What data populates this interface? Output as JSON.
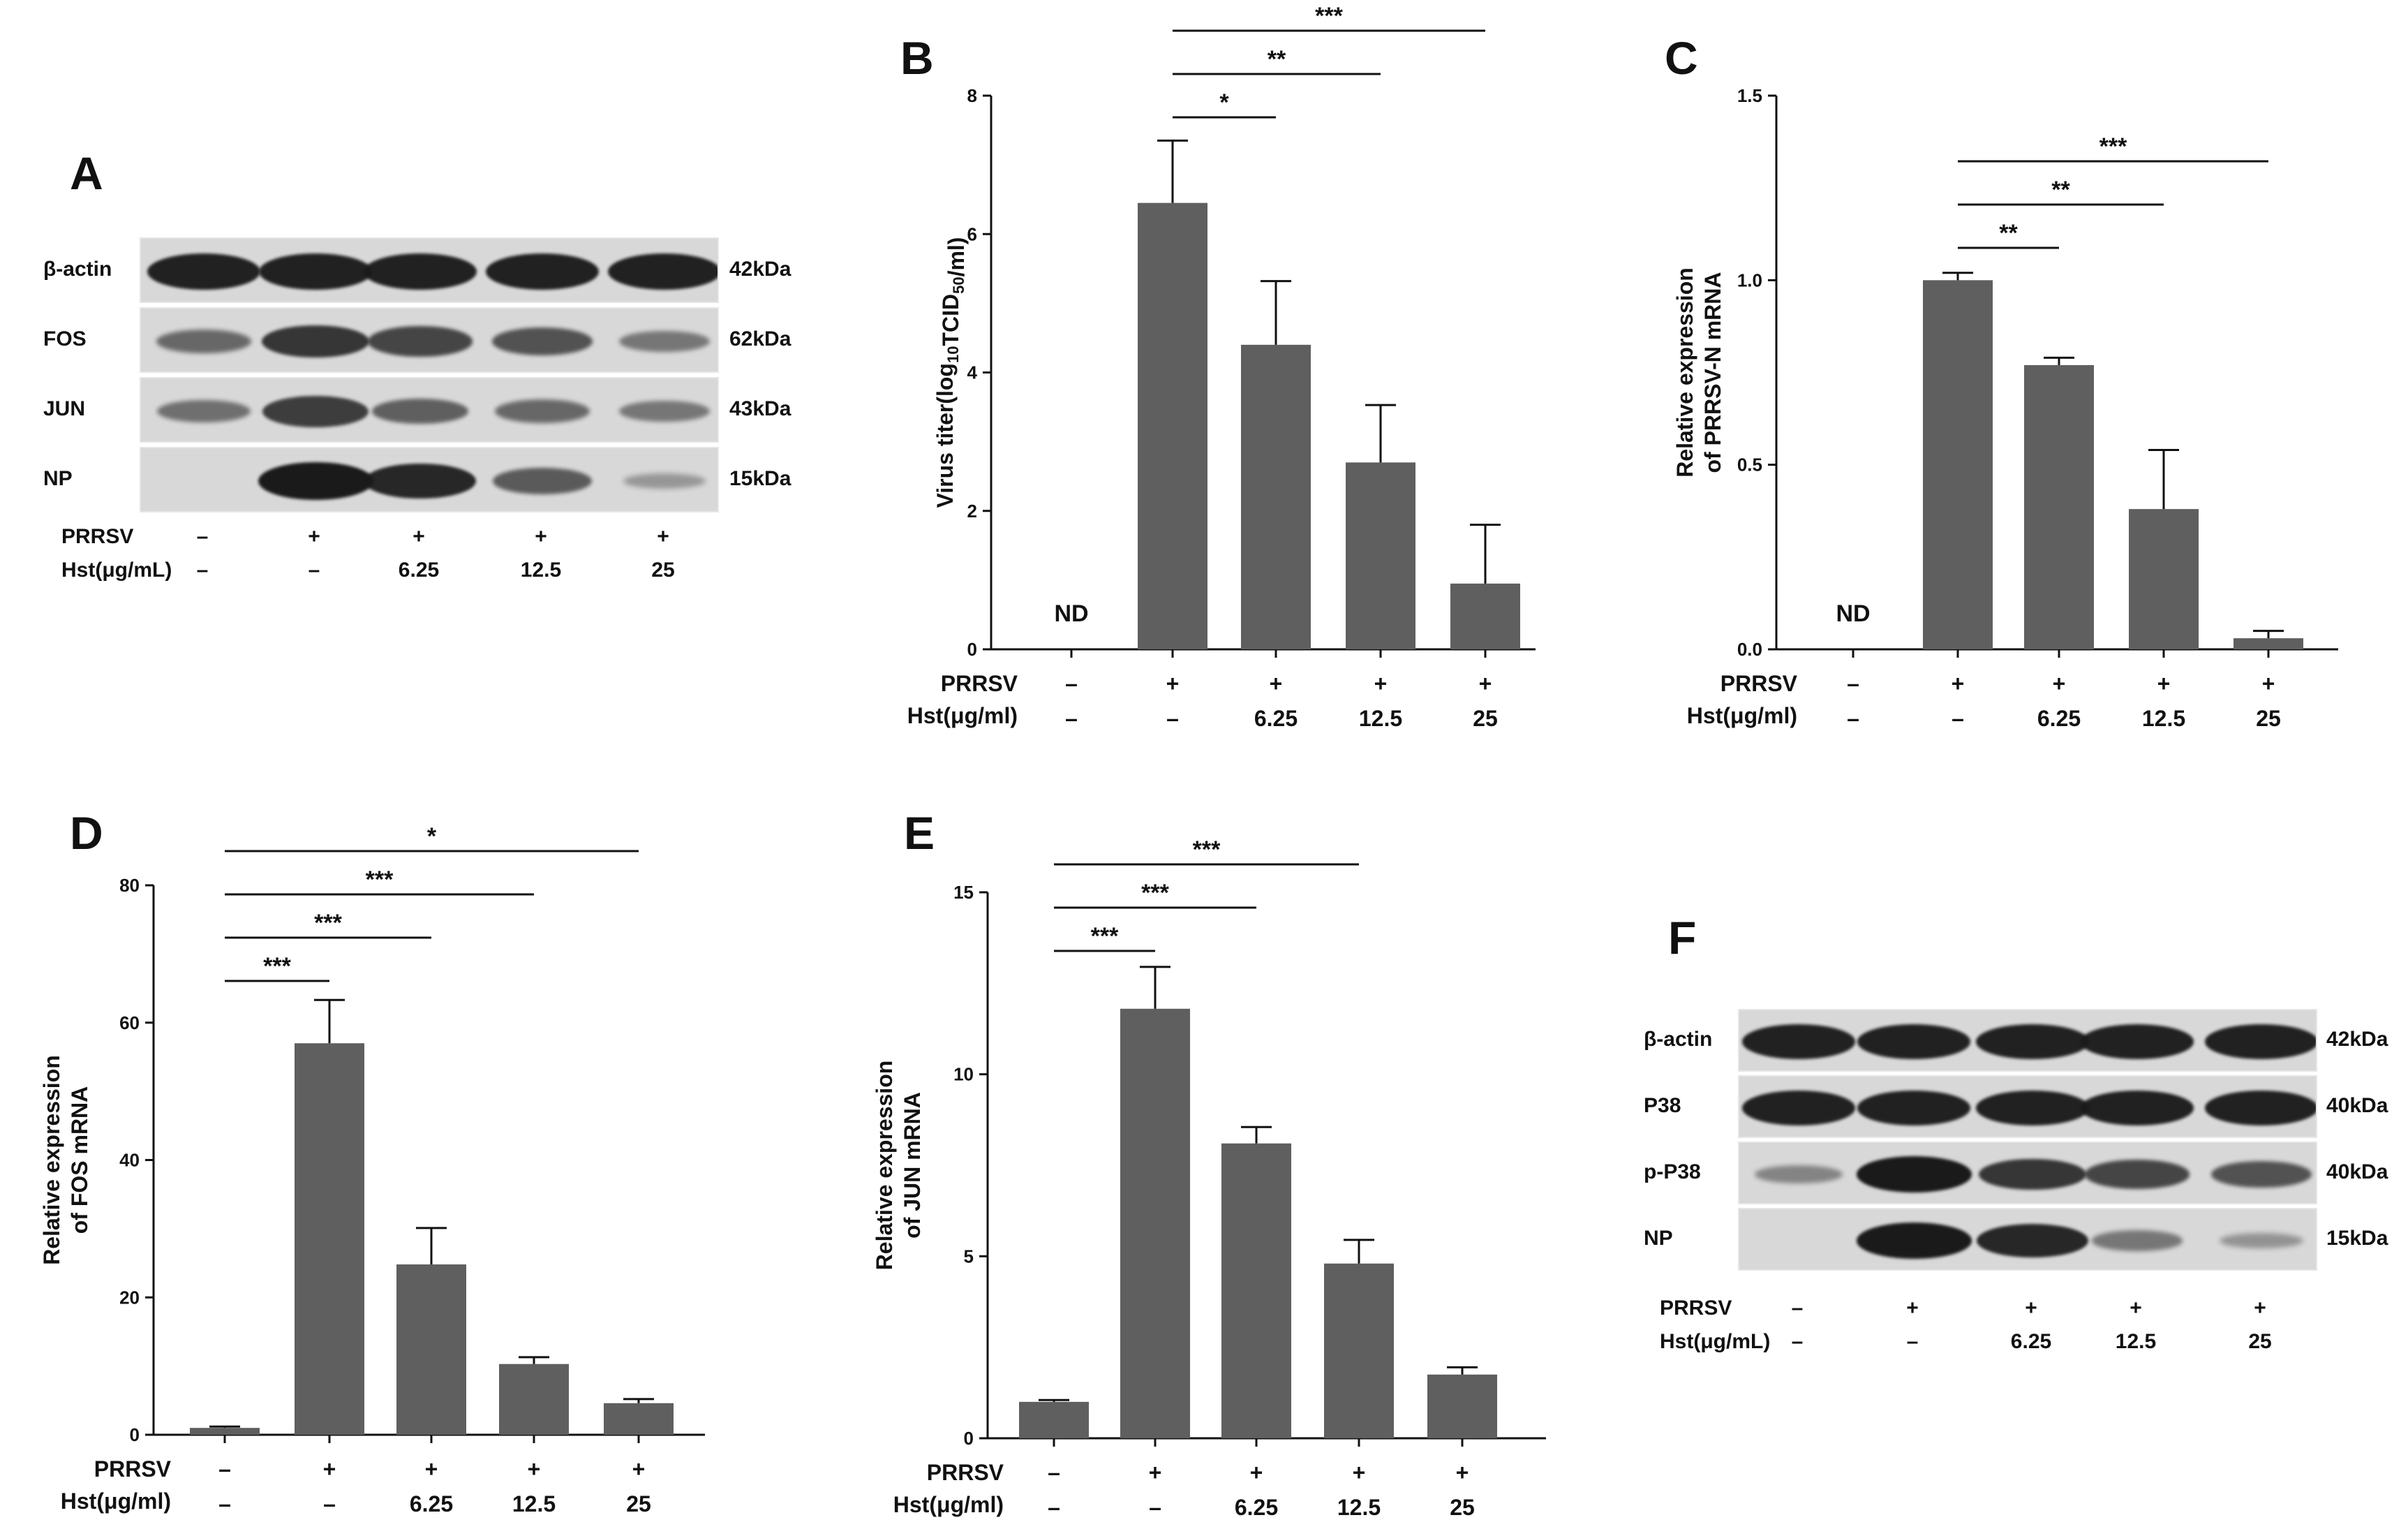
{
  "figure": {
    "panels": [
      "A",
      "B",
      "C",
      "D",
      "E",
      "F"
    ]
  },
  "conditions": {
    "row1_label": "PRRSV",
    "row2_label_blot": "Hst(μg/mL)",
    "row2_label_chart": "Hst(μg/ml)",
    "prrsv": [
      "–",
      "+",
      "+",
      "+",
      "+"
    ],
    "hst": [
      "–",
      "–",
      "6.25",
      "12.5",
      "25"
    ]
  },
  "blot_A": {
    "letter": "A",
    "rows": [
      {
        "label": "β-actin",
        "kda": "42kDa",
        "intensity": [
          0.95,
          0.95,
          0.95,
          0.95,
          0.95
        ]
      },
      {
        "label": "FOS",
        "kda": "62kDa",
        "intensity": [
          0.45,
          0.8,
          0.7,
          0.6,
          0.35
        ]
      },
      {
        "label": "JUN",
        "kda": "43kDa",
        "intensity": [
          0.4,
          0.75,
          0.5,
          0.45,
          0.35
        ]
      },
      {
        "label": "NP",
        "kda": "15kDa",
        "intensity": [
          0.0,
          1.0,
          0.9,
          0.55,
          0.12
        ]
      }
    ]
  },
  "blot_F": {
    "letter": "F",
    "rows": [
      {
        "label": "β-actin",
        "kda": "42kDa",
        "intensity": [
          0.95,
          0.95,
          0.95,
          0.95,
          0.95
        ]
      },
      {
        "label": "P38",
        "kda": "40kDa",
        "intensity": [
          0.95,
          0.95,
          0.95,
          0.95,
          0.95
        ]
      },
      {
        "label": "p-P38",
        "kda": "40kDa",
        "intensity": [
          0.25,
          1.0,
          0.8,
          0.7,
          0.6
        ]
      },
      {
        "label": "NP",
        "kda": "15kDa",
        "intensity": [
          0.0,
          1.0,
          0.9,
          0.35,
          0.15
        ]
      }
    ]
  },
  "colors": {
    "bar": "#5f5f5f",
    "axis": "#111111",
    "blot_bg": "#d8d8d8",
    "band": "#1a1a1a"
  },
  "chart_data": [
    {
      "panel": "B",
      "type": "bar",
      "categories": [
        "1",
        "2",
        "3",
        "4",
        "5"
      ],
      "values": [
        null,
        6.45,
        4.4,
        2.7,
        0.95
      ],
      "errors": [
        null,
        0.9,
        0.92,
        0.83,
        0.85
      ],
      "ylim": [
        0,
        8
      ],
      "yticks": [
        0,
        2,
        4,
        6,
        8
      ],
      "ylabel": "Virus titer(log10TCID50/ml)",
      "nd_label": "ND",
      "significance": [
        {
          "from": 1,
          "to": 2,
          "label": "*"
        },
        {
          "from": 1,
          "to": 3,
          "label": "**"
        },
        {
          "from": 1,
          "to": 4,
          "label": "***"
        }
      ]
    },
    {
      "panel": "C",
      "type": "bar",
      "categories": [
        "1",
        "2",
        "3",
        "4",
        "5"
      ],
      "values": [
        null,
        1.0,
        0.77,
        0.38,
        0.03
      ],
      "errors": [
        null,
        0.02,
        0.02,
        0.16,
        0.02
      ],
      "ylim": [
        0,
        1.5
      ],
      "yticks": [
        0.0,
        0.5,
        1.0,
        1.5
      ],
      "ytick_labels": [
        "0.0",
        "0.5",
        "1.0",
        "1.5"
      ],
      "ylabel_line1": "Relative expression",
      "ylabel_line2": "of PRRSV-N mRNA",
      "nd_label": "ND",
      "significance": [
        {
          "from": 1,
          "to": 2,
          "label": "**"
        },
        {
          "from": 1,
          "to": 3,
          "label": "**"
        },
        {
          "from": 1,
          "to": 4,
          "label": "***"
        }
      ]
    },
    {
      "panel": "D",
      "type": "bar",
      "categories": [
        "1",
        "2",
        "3",
        "4",
        "5"
      ],
      "values": [
        1.0,
        57.0,
        24.8,
        10.3,
        4.6
      ],
      "errors": [
        0.2,
        6.3,
        5.3,
        1.0,
        0.6
      ],
      "ylim": [
        0,
        80
      ],
      "yticks": [
        0,
        20,
        40,
        60,
        80
      ],
      "ylabel_line1": "Relative expression",
      "ylabel_line2": "of FOS mRNA",
      "significance": [
        {
          "from": 0,
          "to": 1,
          "label": "***"
        },
        {
          "from": 0,
          "to": 2,
          "label": "***"
        },
        {
          "from": 0,
          "to": 3,
          "label": "***"
        },
        {
          "from": 0,
          "to": 4,
          "label": "*"
        }
      ]
    },
    {
      "panel": "E",
      "type": "bar",
      "categories": [
        "1",
        "2",
        "3",
        "4",
        "5"
      ],
      "values": [
        1.0,
        11.8,
        8.1,
        4.8,
        1.75
      ],
      "errors": [
        0.05,
        1.15,
        0.45,
        0.65,
        0.2
      ],
      "ylim": [
        0,
        15
      ],
      "yticks": [
        0,
        5,
        10,
        15
      ],
      "ylabel_line1": "Relative expression",
      "ylabel_line2": "of JUN mRNA",
      "significance": [
        {
          "from": 0,
          "to": 1,
          "label": "***"
        },
        {
          "from": 0,
          "to": 2,
          "label": "***"
        },
        {
          "from": 0,
          "to": 3,
          "label": "***"
        }
      ]
    }
  ]
}
